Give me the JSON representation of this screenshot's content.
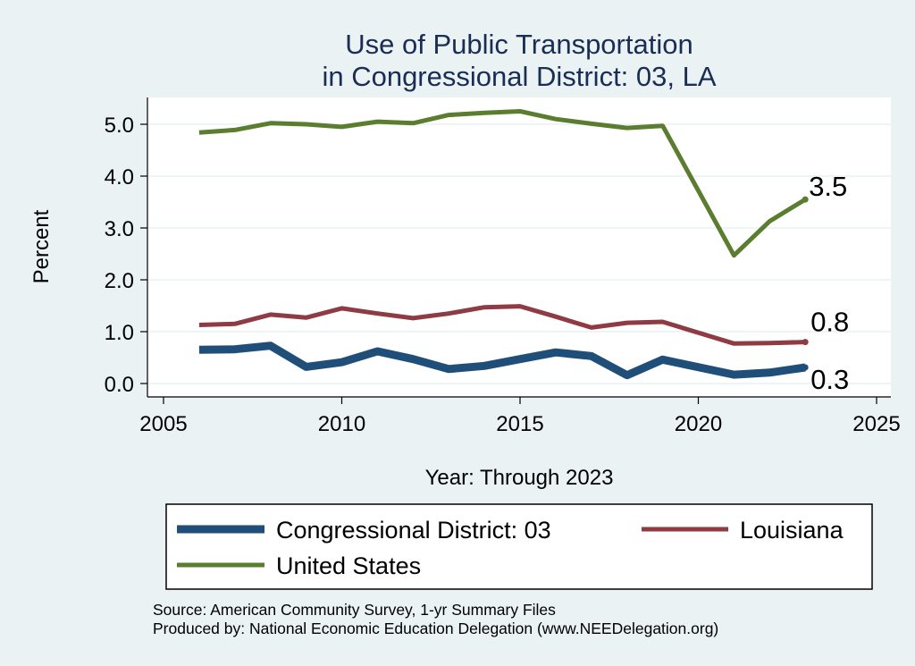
{
  "chart_data": {
    "type": "line",
    "title": [
      "Use of Public Transportation",
      "in Congressional District: 03, LA"
    ],
    "xlabel": "Year: Through 2023",
    "ylabel": "Percent",
    "xlim": [
      2005,
      2025
    ],
    "ylim": [
      0,
      5.5
    ],
    "xticks": [
      2005,
      2010,
      2015,
      2020,
      2025
    ],
    "yticks": [
      "0.0",
      "1.0",
      "2.0",
      "3.0",
      "4.0",
      "5.0"
    ],
    "grid": true,
    "legend_position": "bottom",
    "x": [
      2006,
      2007,
      2008,
      2009,
      2010,
      2011,
      2012,
      2013,
      2014,
      2015,
      2016,
      2017,
      2018,
      2019,
      2021,
      2022,
      2023
    ],
    "series": [
      {
        "name": "Congressional District: 03",
        "color": "#1f4e79",
        "values": [
          0.65,
          0.66,
          0.73,
          0.32,
          0.41,
          0.62,
          0.47,
          0.28,
          0.34,
          0.47,
          0.6,
          0.53,
          0.16,
          0.46,
          0.17,
          0.21,
          0.31
        ],
        "end_label": "0.3"
      },
      {
        "name": "Louisiana",
        "color": "#8e3b44",
        "values": [
          1.13,
          1.15,
          1.33,
          1.27,
          1.45,
          1.35,
          1.26,
          1.35,
          1.47,
          1.49,
          1.29,
          1.08,
          1.17,
          1.19,
          0.77,
          0.78,
          0.8
        ],
        "end_label": "0.8"
      },
      {
        "name": "United States",
        "color": "#5a7d2f",
        "values": [
          4.84,
          4.89,
          5.02,
          5.0,
          4.95,
          5.05,
          5.02,
          5.18,
          5.22,
          5.25,
          5.1,
          5.01,
          4.93,
          4.97,
          2.47,
          3.13,
          3.55
        ],
        "end_label": "3.5"
      }
    ],
    "notes": [
      "Source: American Community Survey, 1-yr Summary Files",
      "Produced by: National Economic Education Delegation (www.NEEDelegation.org)"
    ]
  }
}
